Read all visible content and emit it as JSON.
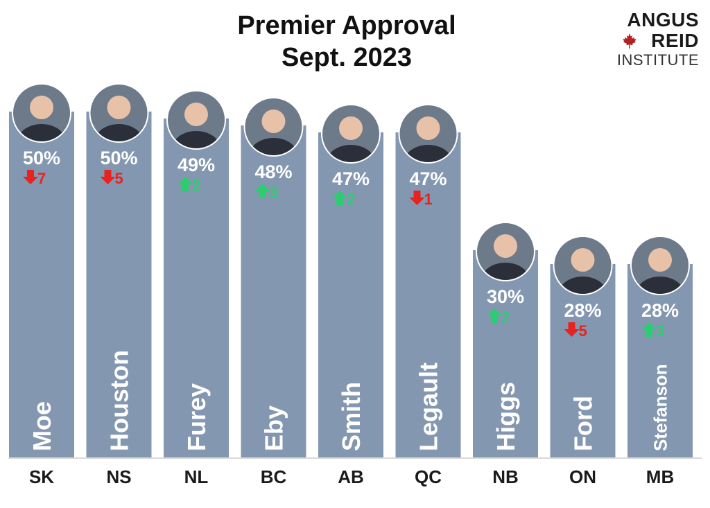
{
  "title_line1": "Premier Approval",
  "title_line2": "Sept. 2023",
  "logo": {
    "line1": "ANGUS",
    "line2": "REID",
    "line3": "INSTITUTE"
  },
  "colors": {
    "bar": "#8497b0",
    "up": "#2ecc71",
    "down": "#e8231f",
    "label": "#ffffff",
    "province": "#1a1a1a",
    "leaf": "#b22222"
  },
  "chart_data": {
    "type": "bar",
    "title": "Premier Approval Sept. 2023",
    "categories": [
      "SK",
      "NS",
      "NL",
      "BC",
      "AB",
      "QC",
      "NB",
      "ON",
      "MB"
    ],
    "values": [
      50,
      50,
      49,
      48,
      47,
      47,
      30,
      28,
      28
    ],
    "value_labels": [
      "50%",
      "50%",
      "49%",
      "48%",
      "47%",
      "47%",
      "30%",
      "28%",
      "28%"
    ],
    "names": [
      "Moe",
      "Houston",
      "Furey",
      "Eby",
      "Smith",
      "Legault",
      "Higgs",
      "Ford",
      "Stefanson"
    ],
    "change": [
      -7,
      -5,
      2,
      3,
      2,
      -1,
      2,
      -5,
      3
    ],
    "change_labels": [
      "7",
      "5",
      "2",
      "3",
      "2",
      "1",
      "2",
      "5",
      "3"
    ],
    "ylim": [
      0,
      55
    ],
    "grid": false,
    "legend": "none"
  }
}
